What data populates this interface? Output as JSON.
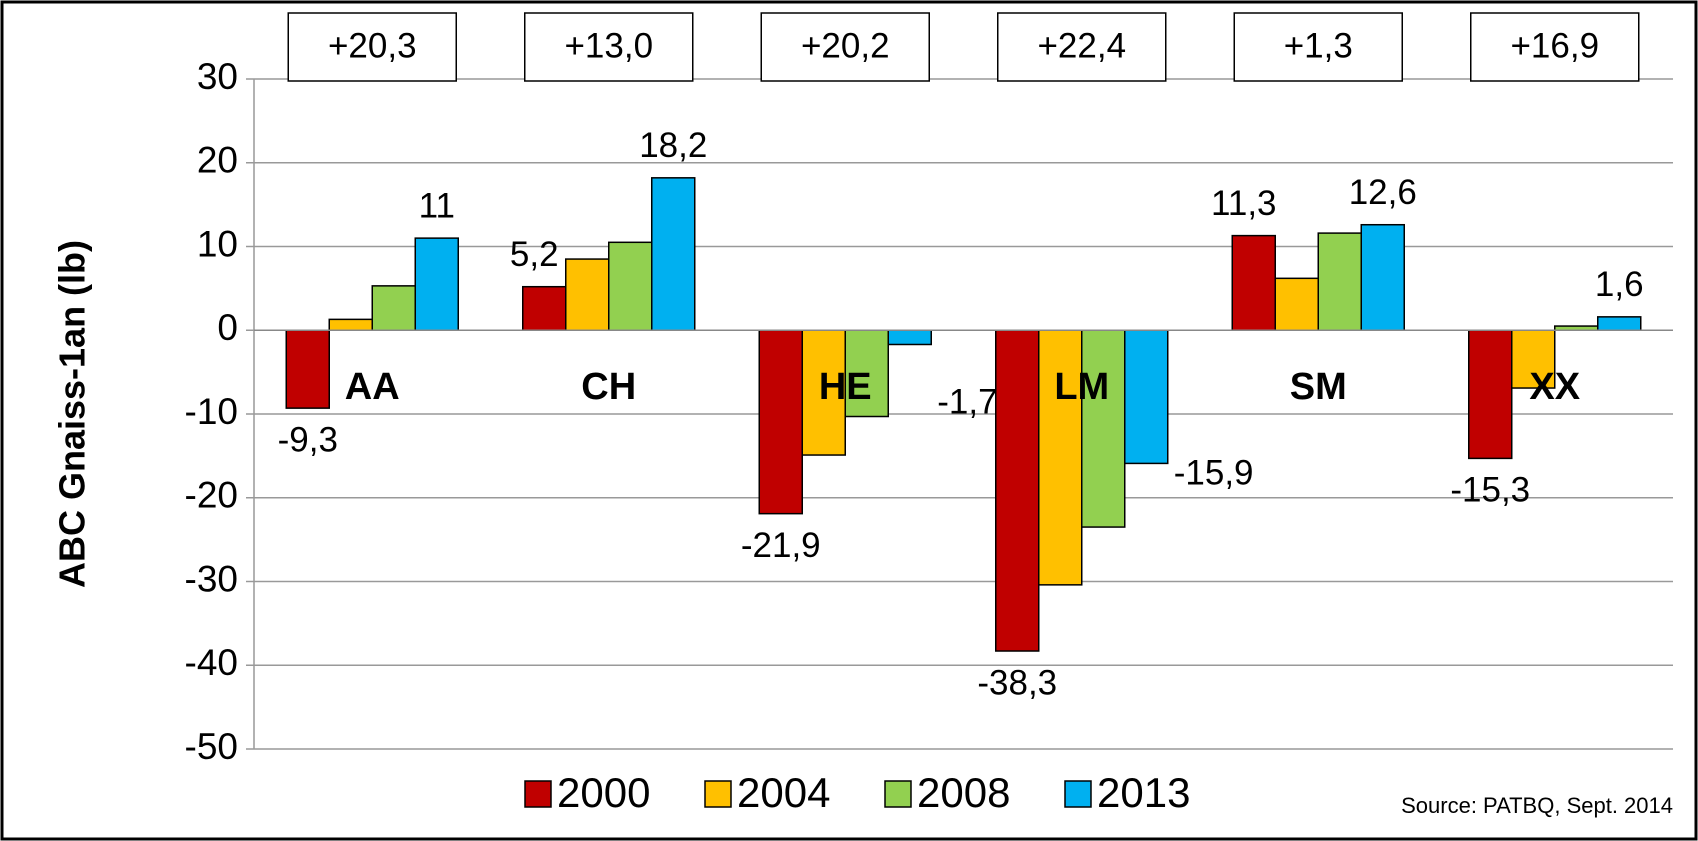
{
  "chart_data": {
    "type": "bar",
    "y_label": "ABC Gnaiss-1an (lb)",
    "source": "Source: PATBQ, Sept. 2014",
    "categories": [
      "AA",
      "CH",
      "HE",
      "LM",
      "SM",
      "XX"
    ],
    "annotations": [
      "+20,3",
      "+13,0",
      "+20,2",
      "+22,4",
      "+1,3",
      "+16,9"
    ],
    "series": [
      {
        "name": "2000",
        "color": "#c00000",
        "values": [
          -9.3,
          5.2,
          -21.9,
          -38.3,
          11.3,
          -15.3
        ],
        "value_labels": [
          "-9,3",
          "5,2",
          "-21,9",
          "-38,3",
          "11,3",
          "-15,3"
        ]
      },
      {
        "name": "2004",
        "color": "#ffc000",
        "values": [
          1.3,
          8.5,
          -14.9,
          -30.4,
          6.2,
          -6.9
        ]
      },
      {
        "name": "2008",
        "color": "#92d050",
        "values": [
          5.3,
          10.5,
          -10.3,
          -23.5,
          11.6,
          0.5
        ]
      },
      {
        "name": "2013",
        "color": "#00b0f0",
        "values": [
          11,
          18.2,
          -1.7,
          -15.9,
          12.6,
          1.6
        ],
        "value_labels": [
          "11",
          "18,2",
          "-1,7",
          "-15,9",
          "12,6",
          "1,6"
        ]
      }
    ],
    "ylim": [
      -50,
      30
    ],
    "yticks": [
      -50,
      -40,
      -30,
      -20,
      -10,
      0,
      10,
      20,
      30
    ],
    "grid": true,
    "legend": "bottom"
  }
}
